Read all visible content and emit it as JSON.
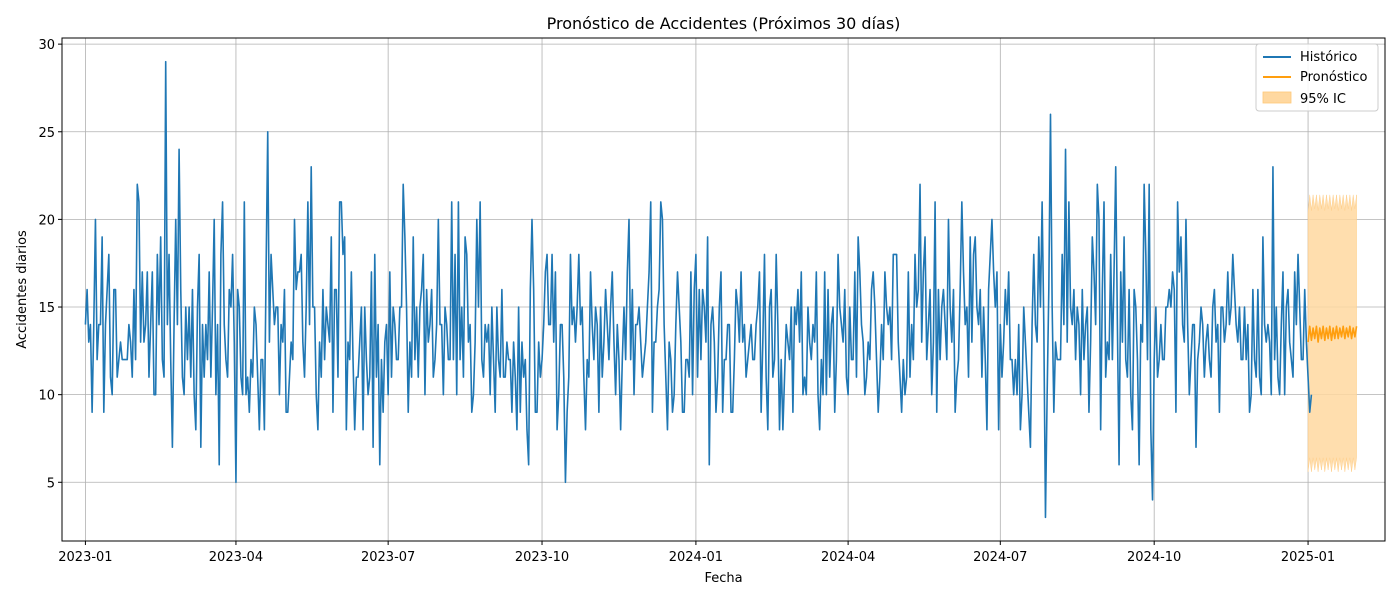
{
  "chart_data": {
    "type": "line",
    "title": "Pronóstico de Accidentes (Próximos 30 días)",
    "xlabel": "Fecha",
    "ylabel": "Accidentes diarios",
    "x_range": [
      "2022-12-18",
      "2025-02-16"
    ],
    "ylim": [
      1.65,
      30.35
    ],
    "y_ticks": [
      5,
      10,
      15,
      20,
      25,
      30
    ],
    "x_ticks": [
      "2023-01",
      "2023-04",
      "2023-07",
      "2023-10",
      "2024-01",
      "2024-04",
      "2024-07",
      "2024-10",
      "2025-01"
    ],
    "grid": true,
    "legend_position": "top-right",
    "legend": [
      {
        "label": "Histórico",
        "kind": "line",
        "color": "#1f77b4"
      },
      {
        "label": "Pronóstico",
        "kind": "line",
        "color": "#ff9e0e"
      },
      {
        "label": "95% IC",
        "kind": "band",
        "color": "#ffd8a0"
      }
    ],
    "series": [
      {
        "name": "Histórico",
        "color": "#1f77b4",
        "x_start": "2023-01-01",
        "x_step_days": 1,
        "values": [
          14,
          16,
          13,
          14,
          9,
          14,
          20,
          12,
          14,
          14,
          19,
          9,
          14,
          16,
          18,
          11,
          10,
          16,
          16,
          11,
          12,
          13,
          12,
          12,
          12,
          12,
          14,
          13,
          11,
          16,
          12,
          22,
          21,
          13,
          17,
          13,
          14,
          17,
          11,
          14,
          17,
          10,
          10,
          18,
          14,
          19,
          12,
          11,
          29,
          14,
          18,
          12,
          7,
          14,
          20,
          14,
          24,
          16,
          11,
          10,
          15,
          12,
          15,
          11,
          16,
          10,
          8,
          15,
          18,
          7,
          14,
          11,
          14,
          12,
          17,
          11,
          15,
          20,
          10,
          14,
          6,
          18,
          21,
          14,
          12,
          11,
          16,
          15,
          18,
          13,
          5,
          16,
          15,
          11,
          10,
          21,
          10,
          11,
          9,
          12,
          11,
          15,
          14,
          11,
          8,
          12,
          12,
          8,
          17,
          25,
          13,
          18,
          16,
          14,
          15,
          15,
          10,
          14,
          13,
          16,
          9,
          9,
          11,
          13,
          12,
          20,
          16,
          17,
          17,
          18,
          13,
          11,
          15,
          21,
          14,
          23,
          15,
          15,
          10,
          8,
          13,
          11,
          16,
          12,
          15,
          14,
          13,
          19,
          9,
          16,
          16,
          11,
          21,
          21,
          18,
          19,
          8,
          13,
          12,
          17,
          12,
          8,
          11,
          11,
          13,
          15,
          8,
          15,
          12,
          10,
          11,
          17,
          7,
          18,
          11,
          14,
          6,
          12,
          9,
          13,
          14,
          10,
          17,
          11,
          15,
          14,
          12,
          12,
          15,
          15,
          22,
          19,
          15,
          9,
          13,
          11,
          19,
          12,
          15,
          11,
          15,
          16,
          18,
          10,
          16,
          13,
          14,
          16,
          11,
          12,
          14,
          20,
          14,
          14,
          10,
          15,
          14,
          12,
          12,
          21,
          12,
          18,
          10,
          21,
          12,
          15,
          11,
          19,
          18,
          13,
          14,
          9,
          10,
          13,
          20,
          15,
          21,
          12,
          11,
          14,
          13,
          14,
          10,
          15,
          12,
          9,
          15,
          12,
          11,
          16,
          11,
          11,
          13,
          12,
          12,
          9,
          13,
          11,
          8,
          15,
          9,
          13,
          11,
          12,
          8,
          6,
          16,
          20,
          16,
          9,
          9,
          13,
          11,
          12,
          14,
          17,
          18,
          14,
          14,
          18,
          13,
          17,
          8,
          10,
          14,
          14,
          11,
          5,
          9,
          11,
          18,
          14,
          15,
          13,
          15,
          18,
          14,
          15,
          11,
          8,
          12,
          11,
          17,
          14,
          12,
          15,
          14,
          9,
          15,
          11,
          13,
          16,
          14,
          12,
          15,
          17,
          13,
          10,
          14,
          12,
          8,
          12,
          15,
          12,
          17,
          20,
          12,
          16,
          10,
          14,
          14,
          15,
          13,
          11,
          12,
          13,
          15,
          17,
          21,
          9,
          13,
          13,
          15,
          16,
          21,
          20,
          14,
          11,
          8,
          13,
          12,
          9,
          10,
          14,
          17,
          15,
          13,
          9,
          9,
          12,
          12,
          11,
          17,
          10,
          16,
          18,
          11,
          16,
          12,
          16,
          15,
          13,
          19,
          6,
          14,
          15,
          13,
          9,
          11,
          15,
          17,
          9,
          12,
          12,
          14,
          14,
          9,
          9,
          12,
          16,
          15,
          13,
          17,
          13,
          14,
          11,
          12,
          13,
          14,
          12,
          12,
          14,
          15,
          17,
          9,
          13,
          18,
          11,
          8,
          15,
          16,
          11,
          12,
          18,
          14,
          8,
          12,
          8,
          11,
          14,
          13,
          12,
          15,
          9,
          15,
          14,
          16,
          13,
          17,
          10,
          11,
          10,
          15,
          13,
          12,
          14,
          13,
          17,
          10,
          8,
          12,
          10,
          17,
          10,
          16,
          11,
          14,
          15,
          9,
          12,
          18,
          15,
          14,
          13,
          16,
          11,
          10,
          15,
          12,
          12,
          17,
          11,
          19,
          17,
          14,
          13,
          10,
          11,
          13,
          12,
          16,
          17,
          15,
          12,
          9,
          11,
          14,
          12,
          17,
          15,
          14,
          15,
          12,
          18,
          18,
          18,
          13,
          11,
          9,
          12,
          10,
          11,
          17,
          11,
          14,
          12,
          18,
          15,
          16,
          22,
          13,
          17,
          19,
          12,
          14,
          16,
          10,
          13,
          21,
          9,
          16,
          12,
          15,
          16,
          14,
          12,
          20,
          15,
          13,
          16,
          9,
          11,
          12,
          16,
          21,
          17,
          14,
          15,
          11,
          19,
          13,
          18,
          19,
          15,
          14,
          16,
          11,
          15,
          12,
          8,
          16,
          18,
          20,
          17,
          15,
          17,
          8,
          14,
          11,
          13,
          16,
          14,
          17,
          12,
          12,
          10,
          12,
          10,
          14,
          8,
          10,
          15,
          13,
          11,
          9,
          7,
          14,
          18,
          14,
          13,
          19,
          15,
          21,
          14,
          3,
          10,
          16,
          26,
          15,
          9,
          13,
          12,
          12,
          12,
          18,
          14,
          24,
          13,
          21,
          15,
          14,
          16,
          12,
          15,
          14,
          10,
          16,
          12,
          14,
          15,
          9,
          13,
          19,
          17,
          14,
          22,
          20,
          8,
          16,
          21,
          11,
          13,
          12,
          18,
          12,
          17,
          23,
          14,
          6,
          17,
          13,
          19,
          12,
          11,
          16,
          10,
          8,
          16,
          15,
          12,
          6,
          14,
          13,
          22,
          18,
          12,
          22,
          8,
          4,
          12,
          15,
          11,
          12,
          14,
          12,
          12,
          15,
          15,
          16,
          15,
          17,
          16,
          9,
          21,
          17,
          19,
          14,
          13,
          20,
          14,
          10,
          12,
          14,
          14,
          7,
          12,
          13,
          15,
          14,
          11,
          13,
          14,
          12,
          11,
          15,
          16,
          13,
          14,
          9,
          15,
          15,
          13,
          14,
          17,
          14,
          15,
          18,
          16,
          14,
          13,
          15,
          12,
          12,
          15,
          12,
          14,
          9,
          10,
          16,
          12,
          11,
          16,
          11,
          10,
          19,
          14,
          13,
          14,
          13,
          10,
          23,
          12,
          15,
          11,
          10,
          14,
          17,
          10,
          15,
          16,
          13,
          12,
          11,
          17,
          14,
          18,
          15,
          12,
          12,
          16,
          13,
          11,
          9,
          10
        ]
      },
      {
        "name": "Pronóstico",
        "color": "#ff9e0e",
        "x_start": "2025-01-01",
        "x_step_days": 1,
        "values": [
          13.0,
          13.9,
          13.1,
          13.8,
          13.2,
          13.9,
          13.0,
          13.8,
          13.2,
          13.9,
          13.1,
          13.8,
          13.2,
          13.9,
          13.1,
          13.8,
          13.2,
          13.9,
          13.2,
          13.8,
          13.3,
          13.9,
          13.2,
          13.8,
          13.3,
          13.9,
          13.2,
          13.8,
          13.3,
          13.9
        ]
      }
    ],
    "band": {
      "name": "95% IC",
      "color": "#ffd8a0",
      "x_start": "2025-01-01",
      "x_step_days": 1,
      "lower": [
        5.6,
        6.4,
        5.6,
        6.4,
        5.7,
        6.4,
        5.6,
        6.4,
        5.7,
        6.4,
        5.6,
        6.4,
        5.7,
        6.4,
        5.6,
        6.4,
        5.7,
        6.4,
        5.6,
        6.4,
        5.7,
        6.4,
        5.6,
        6.4,
        5.7,
        6.4,
        5.6,
        6.4,
        5.7,
        6.4
      ],
      "upper": [
        20.4,
        21.4,
        20.5,
        21.4,
        20.6,
        21.4,
        20.5,
        21.4,
        20.6,
        21.4,
        20.5,
        21.4,
        20.6,
        21.4,
        20.5,
        21.4,
        20.6,
        21.4,
        20.5,
        21.4,
        20.6,
        21.4,
        20.5,
        21.4,
        20.6,
        21.4,
        20.5,
        21.4,
        20.6,
        21.4
      ]
    }
  }
}
